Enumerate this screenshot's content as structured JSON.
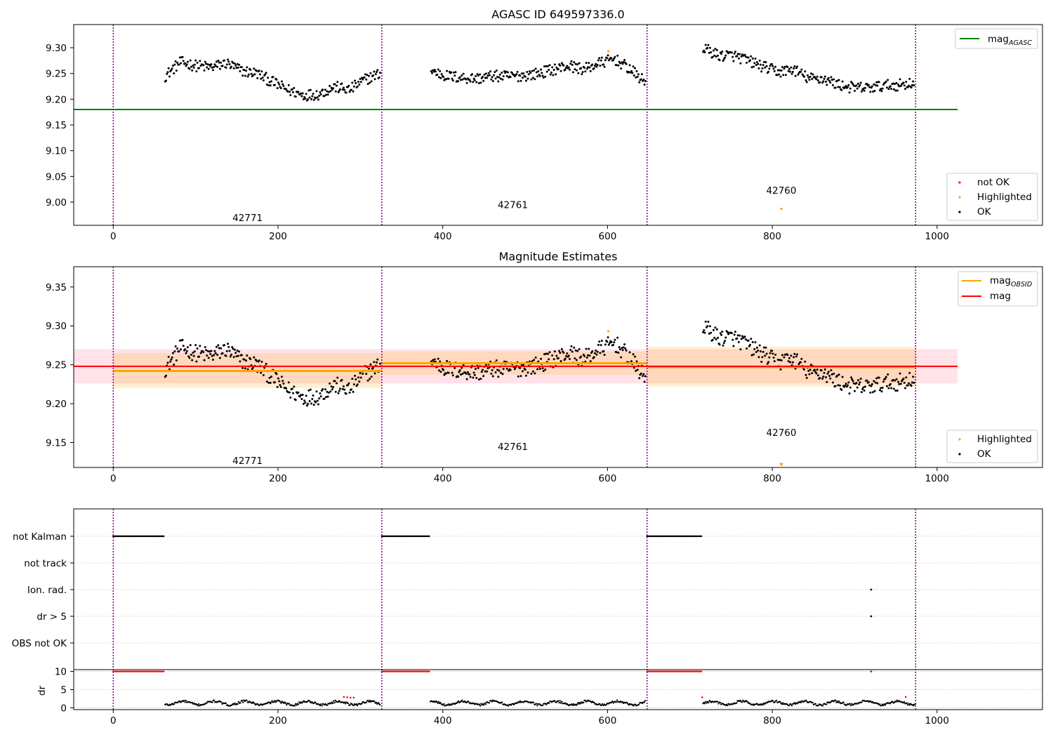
{
  "figure_title": "AGASC ID 649597336.0",
  "chart_data": [
    {
      "type": "scatter",
      "title": "AGASC ID 649597336.0",
      "xlabel": "",
      "ylabel": "",
      "xlim": [
        -48,
        1128
      ],
      "ylim": [
        8.955,
        9.345
      ],
      "x_ticks": [
        0,
        200,
        400,
        600,
        800,
        1000
      ],
      "y_ticks": [
        9.0,
        9.05,
        9.1,
        9.15,
        9.2,
        9.25,
        9.3
      ],
      "obsid_boundaries": [
        0,
        326,
        648,
        974
      ],
      "obsid_labels": [
        {
          "text": "42771",
          "x": 163,
          "y": 8.97
        },
        {
          "text": "42761",
          "x": 485,
          "y": 8.995
        },
        {
          "text": "42760",
          "x": 811,
          "y": 9.023
        }
      ],
      "reference_lines": [
        {
          "name": "mag_AGASC",
          "y": 9.18,
          "x": [
            -48,
            1025
          ],
          "color": "#008000"
        }
      ],
      "highlighted_points": [
        {
          "x": 601,
          "y": 9.293
        },
        {
          "x": 811,
          "y": 8.987
        }
      ],
      "segments": [
        {
          "x_start": 63,
          "x_end": 324,
          "y_knots": [
            9.245,
            9.272,
            9.265,
            9.262,
            9.27,
            9.255,
            9.25,
            9.233,
            9.218,
            9.208,
            9.21,
            9.224,
            9.218,
            9.238,
            9.25
          ]
        },
        {
          "x_start": 386,
          "x_end": 646,
          "y_knots": [
            9.255,
            9.245,
            9.242,
            9.24,
            9.245,
            9.244,
            9.246,
            9.25,
            9.258,
            9.265,
            9.258,
            9.27,
            9.278,
            9.258,
            9.232
          ]
        },
        {
          "x_start": 716,
          "x_end": 972,
          "y_knots": [
            9.3,
            9.285,
            9.285,
            9.275,
            9.263,
            9.253,
            9.258,
            9.24,
            9.24,
            9.228,
            9.222,
            9.222,
            9.226,
            9.228,
            9.232
          ]
        }
      ],
      "legend": {
        "position": "top-right",
        "entries": [
          {
            "label": "mag",
            "subscript": "AGASC",
            "color": "#008000"
          }
        ]
      },
      "legend_lower": {
        "position": "lower-right",
        "entries": [
          {
            "label": "not OK",
            "color": "#ff0000"
          },
          {
            "label": "Highlighted",
            "color": "#ffa500"
          },
          {
            "label": "OK",
            "color": "#000000"
          }
        ]
      }
    },
    {
      "type": "scatter",
      "title": "Magnitude Estimates",
      "xlabel": "",
      "ylabel": "",
      "xlim": [
        -48,
        1128
      ],
      "ylim": [
        9.118,
        9.376
      ],
      "x_ticks": [
        0,
        200,
        400,
        600,
        800,
        1000
      ],
      "y_ticks": [
        9.15,
        9.2,
        9.25,
        9.3,
        9.35
      ],
      "obsid_boundaries": [
        0,
        326,
        648,
        974
      ],
      "obsid_labels": [
        {
          "text": "42771",
          "x": 163,
          "y": 9.127
        },
        {
          "text": "42761",
          "x": 485,
          "y": 9.145
        },
        {
          "text": "42760",
          "x": 811,
          "y": 9.163
        }
      ],
      "mag": {
        "value": 9.248,
        "band": [
          9.226,
          9.27
        ],
        "x": [
          -48,
          1025
        ],
        "color": "#ff0000",
        "band_color": "#ffc0cb"
      },
      "mag_obsid": [
        {
          "x": [
            0,
            326
          ],
          "value": 9.242,
          "band": [
            9.22,
            9.265
          ]
        },
        {
          "x": [
            326,
            648
          ],
          "value": 9.252,
          "band": [
            9.237,
            9.267
          ]
        },
        {
          "x": [
            648,
            974
          ],
          "value": 9.247,
          "band": [
            9.222,
            9.273
          ]
        }
      ],
      "highlighted_points": [
        {
          "x": 601,
          "y": 9.293
        },
        {
          "x": 811,
          "y": 9.121
        }
      ],
      "legend": {
        "position": "top-right",
        "entries": [
          {
            "label": "mag",
            "subscript": "OBSID",
            "color": "#ffa500"
          },
          {
            "label": "mag",
            "color": "#ff0000"
          }
        ]
      },
      "legend_lower": {
        "position": "lower-right",
        "entries": [
          {
            "label": "Highlighted",
            "color": "#ffa500"
          },
          {
            "label": "OK",
            "color": "#000000"
          }
        ]
      }
    },
    {
      "type": "scatter",
      "title": "",
      "xlabel": "",
      "ylabel": "",
      "xlim": [
        -48,
        1128
      ],
      "categories": [
        "not Kalman",
        "not track",
        "Ion. rad.",
        "dr > 5",
        "OBS not OK"
      ],
      "flag_ranges": [
        {
          "category": "not Kalman",
          "ranges": [
            [
              0,
              62
            ],
            [
              326,
              384
            ],
            [
              648,
              715
            ]
          ]
        },
        {
          "category": "Ion. rad.",
          "points": [
            920
          ]
        },
        {
          "category": "dr > 5",
          "points": [
            920
          ]
        }
      ],
      "dr_panel": {
        "ylabel": "dr",
        "y_ticks": [
          0,
          5,
          10
        ],
        "ylim": [
          -0.5,
          10.5
        ],
        "clipped_value": 10,
        "clipped_ranges": [
          [
            0,
            62
          ],
          [
            326,
            384
          ],
          [
            648,
            715
          ]
        ],
        "clipped_points": [
          920
        ],
        "segments": [
          [
            63,
            324
          ],
          [
            385,
            646
          ],
          [
            716,
            974
          ]
        ],
        "red_points": [
          {
            "x": 280,
            "y": 3.0
          },
          {
            "x": 284,
            "y": 2.9
          },
          {
            "x": 288,
            "y": 2.8
          },
          {
            "x": 292,
            "y": 2.8
          },
          {
            "x": 715,
            "y": 2.9
          },
          {
            "x": 962,
            "y": 3.0
          }
        ],
        "x_ticks": [
          0,
          200,
          400,
          600,
          800,
          1000
        ]
      }
    }
  ],
  "colors": {
    "ok": "#000000",
    "not_ok": "#ff0000",
    "highlighted": "#ffa500",
    "boundary": "#800080",
    "agasc": "#008000"
  }
}
